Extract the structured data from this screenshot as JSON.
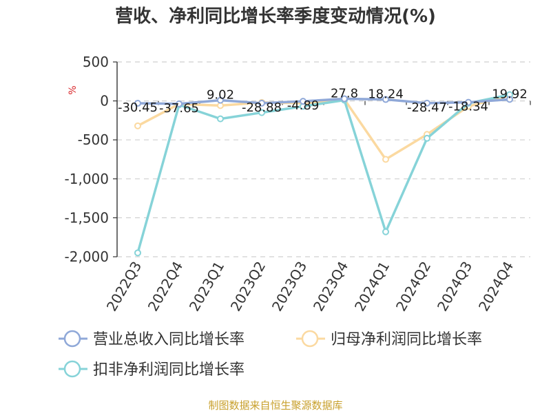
{
  "chart_data": {
    "type": "line",
    "title": "营收、净利同比增长率季度变动情况(%)",
    "unit_label": "%",
    "categories": [
      "2022Q3",
      "2022Q4",
      "2023Q1",
      "2023Q2",
      "2023Q3",
      "2023Q4",
      "2024Q1",
      "2024Q2",
      "2024Q3",
      "2024Q4"
    ],
    "ylim": [
      -2000,
      500
    ],
    "yticks": [
      500,
      0,
      -500,
      -1000,
      -1500,
      -2000
    ],
    "ytick_labels": [
      "500",
      "0",
      "-500",
      "-1,000",
      "-1,500",
      "-2,000"
    ],
    "grid": true,
    "legend_position": "bottom",
    "series": [
      {
        "name": "营业总收入同比增长率",
        "color": "#8fa8d8",
        "values": [
          -30.45,
          -37.65,
          9.02,
          -28.88,
          -4.89,
          27.8,
          18.24,
          -28.47,
          -18.34,
          19.92
        ],
        "labels": [
          "-30.45",
          "-37.65",
          "9.02",
          "-28.88",
          "-4.89",
          "27.8",
          "18.24",
          "-28.47",
          "-18.34",
          "19.92"
        ]
      },
      {
        "name": "归母净利润同比增长率",
        "color": "#fbd9a0",
        "values": [
          -320,
          -40,
          -60,
          -20,
          -30,
          20,
          -750,
          -430,
          -70,
          70
        ]
      },
      {
        "name": "扣非净利润同比增长率",
        "color": "#86d3d8",
        "values": [
          -1950,
          -50,
          -230,
          -150,
          -70,
          10,
          -1680,
          -480,
          -30,
          80
        ]
      }
    ]
  },
  "footer": {
    "source": "制图数据来自恒生聚源数据库"
  }
}
